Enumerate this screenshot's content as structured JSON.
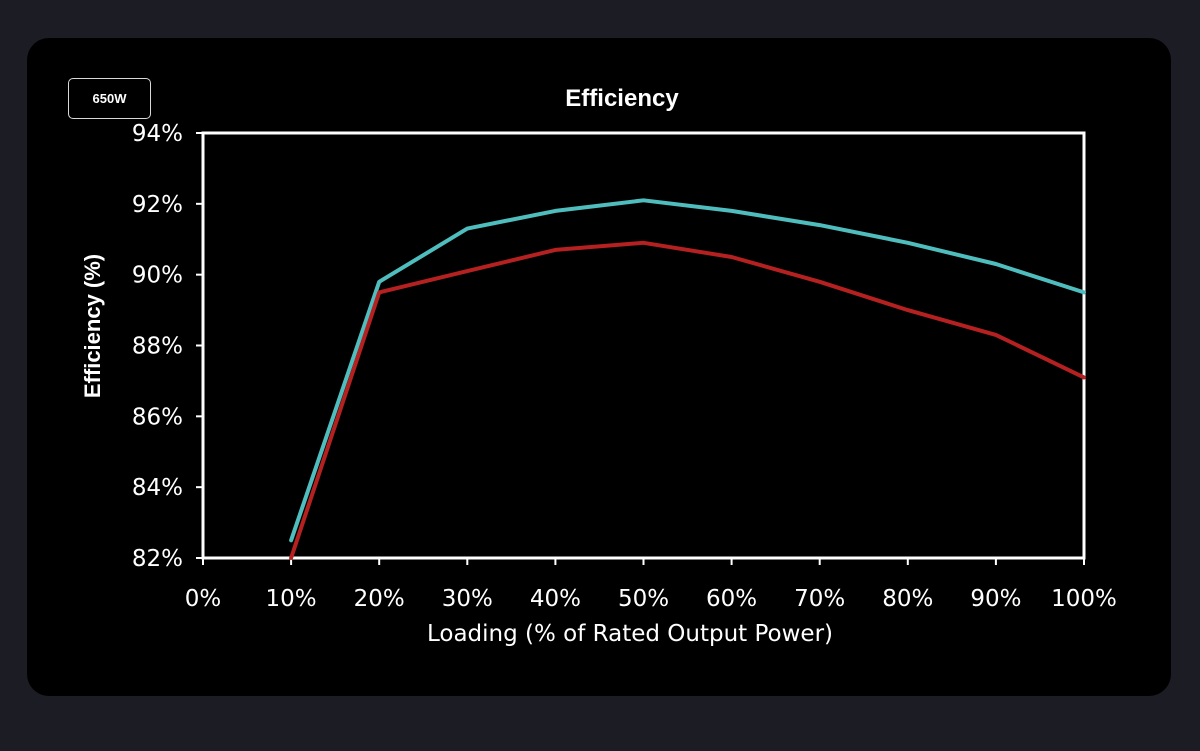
{
  "badge": {
    "label": "650W"
  },
  "colors": {
    "series_a": "#4fbdbd",
    "series_b": "#b52020",
    "axis": "#ffffff",
    "text": "#ffffff"
  },
  "chart_data": {
    "type": "line",
    "title": "Efficiency",
    "xlabel": "Loading (% of Rated Output Power)",
    "ylabel": "Efficiency (%)",
    "x": [
      10,
      20,
      30,
      40,
      50,
      60,
      70,
      80,
      90,
      100
    ],
    "x_ticks": [
      "0%",
      "10%",
      "20%",
      "30%",
      "40%",
      "50%",
      "60%",
      "70%",
      "80%",
      "90%",
      "100%"
    ],
    "y_ticks": [
      "82%",
      "84%",
      "86%",
      "88%",
      "90%",
      "92%",
      "94%"
    ],
    "xlim": [
      0,
      100
    ],
    "ylim": [
      82,
      94
    ],
    "grid": false,
    "series": [
      {
        "values": [
          82.5,
          89.8,
          91.3,
          91.8,
          92.1,
          91.8,
          91.4,
          90.9,
          90.3,
          89.5
        ],
        "color": "#4fbdbd"
      },
      {
        "values": [
          82.0,
          89.5,
          90.1,
          90.7,
          90.9,
          90.5,
          89.8,
          89.0,
          88.3,
          87.1
        ],
        "color": "#b52020"
      }
    ]
  }
}
